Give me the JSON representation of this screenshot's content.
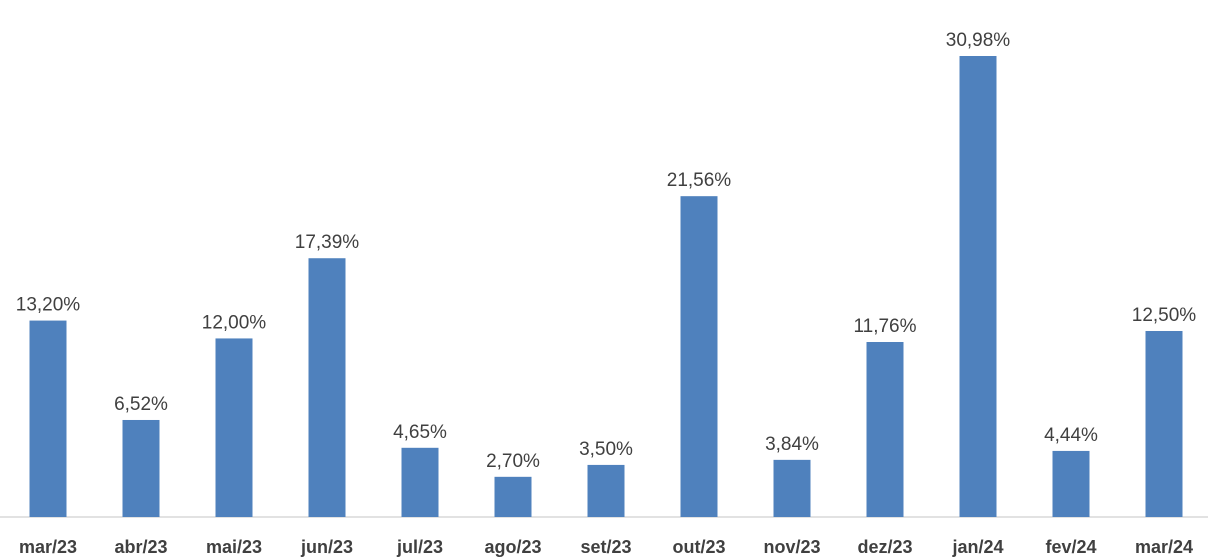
{
  "chart_data": {
    "type": "bar",
    "categories": [
      "mar/23",
      "abr/23",
      "mai/23",
      "jun/23",
      "jul/23",
      "ago/23",
      "set/23",
      "out/23",
      "nov/23",
      "dez/23",
      "jan/24",
      "fev/24",
      "mar/24"
    ],
    "values": [
      13.2,
      6.52,
      12.0,
      17.39,
      4.65,
      2.7,
      3.5,
      21.56,
      3.84,
      11.76,
      30.98,
      4.44,
      12.5
    ],
    "value_labels": [
      "13,20%",
      "6,52%",
      "12,00%",
      "17,39%",
      "4,65%",
      "2,70%",
      "3,50%",
      "21,56%",
      "3,84%",
      "11,76%",
      "30,98%",
      "4,44%",
      "12,50%"
    ],
    "color": "#4f81bd"
  }
}
